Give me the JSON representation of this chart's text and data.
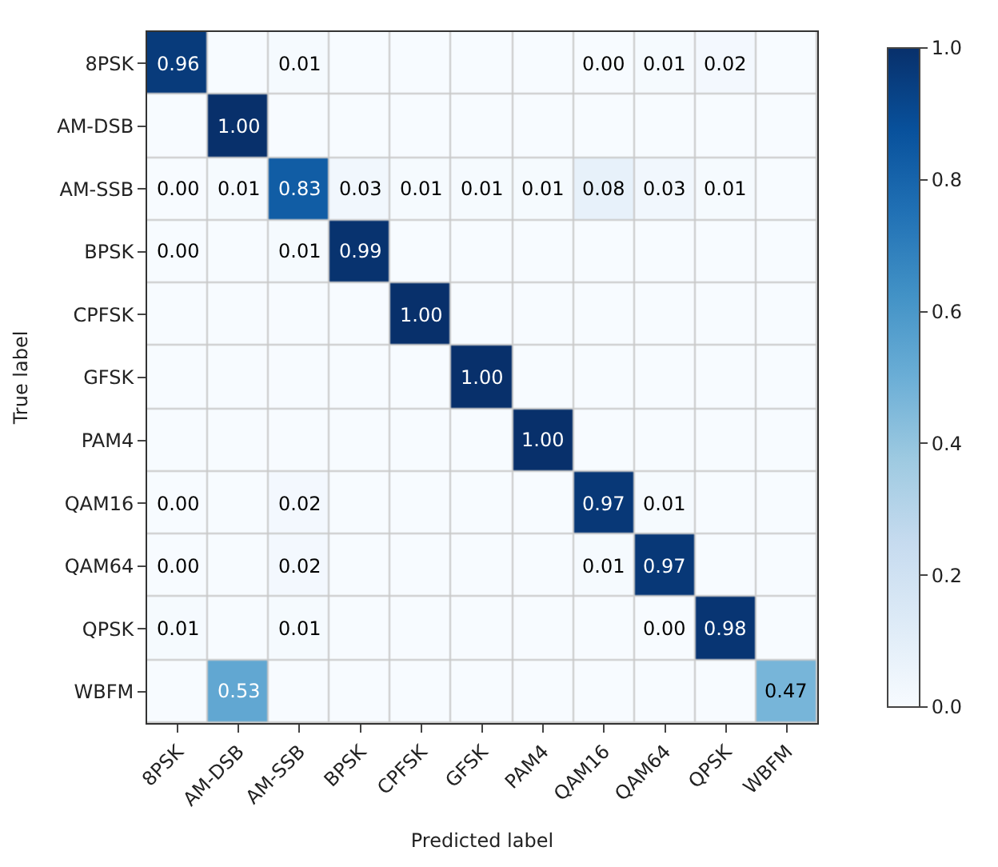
{
  "chart_data": {
    "type": "heatmap",
    "xlabel": "Predicted label",
    "ylabel": "True label",
    "categories": [
      "8PSK",
      "AM-DSB",
      "AM-SSB",
      "BPSK",
      "CPFSK",
      "GFSK",
      "PAM4",
      "QAM16",
      "QAM64",
      "QPSK",
      "WBFM"
    ],
    "y_categories": [
      "8PSK",
      "AM-DSB",
      "AM-SSB",
      "BPSK",
      "CPFSK",
      "GFSK",
      "PAM4",
      "QAM16",
      "QAM64",
      "QPSK",
      "WBFM"
    ],
    "cells": [
      [
        0.96,
        0,
        0.01,
        0,
        0,
        0,
        0,
        0.0,
        0.01,
        0.02,
        0
      ],
      [
        0,
        1.0,
        0,
        0,
        0,
        0,
        0,
        0,
        0,
        0,
        0
      ],
      [
        0.0,
        0.01,
        0.83,
        0.03,
        0.01,
        0.01,
        0.01,
        0.08,
        0.03,
        0.01,
        0
      ],
      [
        0.0,
        0,
        0.01,
        0.99,
        0,
        0,
        0,
        0,
        0,
        0,
        0
      ],
      [
        0,
        0,
        0,
        0,
        1.0,
        0,
        0,
        0,
        0,
        0,
        0
      ],
      [
        0,
        0,
        0,
        0,
        0,
        1.0,
        0,
        0,
        0,
        0,
        0
      ],
      [
        0,
        0,
        0,
        0,
        0,
        0,
        1.0,
        0,
        0,
        0,
        0
      ],
      [
        0.0,
        0,
        0.02,
        0,
        0,
        0,
        0,
        0.97,
        0.01,
        0,
        0
      ],
      [
        0.0,
        0,
        0.02,
        0,
        0,
        0,
        0,
        0.01,
        0.97,
        0,
        0
      ],
      [
        0.01,
        0,
        0.01,
        0,
        0,
        0,
        0,
        0,
        0.0,
        0.98,
        0
      ],
      [
        0,
        0.53,
        0,
        0,
        0,
        0,
        0,
        0,
        0,
        0,
        0.47
      ]
    ],
    "cell_labels": [
      [
        "0.96",
        null,
        "0.01",
        null,
        null,
        null,
        null,
        "0.00",
        "0.01",
        "0.02",
        null
      ],
      [
        null,
        "1.00",
        null,
        null,
        null,
        null,
        null,
        null,
        null,
        null,
        null
      ],
      [
        "0.00",
        "0.01",
        "0.83",
        "0.03",
        "0.01",
        "0.01",
        "0.01",
        "0.08",
        "0.03",
        "0.01",
        null
      ],
      [
        "0.00",
        null,
        "0.01",
        "0.99",
        null,
        null,
        null,
        null,
        null,
        null,
        null
      ],
      [
        null,
        null,
        null,
        null,
        "1.00",
        null,
        null,
        null,
        null,
        null,
        null
      ],
      [
        null,
        null,
        null,
        null,
        null,
        "1.00",
        null,
        null,
        null,
        null,
        null
      ],
      [
        null,
        null,
        null,
        null,
        null,
        null,
        "1.00",
        null,
        null,
        null,
        null
      ],
      [
        "0.00",
        null,
        "0.02",
        null,
        null,
        null,
        null,
        "0.97",
        "0.01",
        null,
        null
      ],
      [
        "0.00",
        null,
        "0.02",
        null,
        null,
        null,
        null,
        "0.01",
        "0.97",
        null,
        null
      ],
      [
        "0.01",
        null,
        "0.01",
        null,
        null,
        null,
        null,
        null,
        "0.00",
        "0.98",
        null
      ],
      [
        null,
        "0.53",
        null,
        null,
        null,
        null,
        null,
        null,
        null,
        null,
        "0.47"
      ]
    ],
    "clim": [
      0.0,
      1.0
    ],
    "cticks": [
      {
        "value": 0.0,
        "label": "0.0"
      },
      {
        "value": 0.2,
        "label": "0.2"
      },
      {
        "value": 0.4,
        "label": "0.4"
      },
      {
        "value": 0.6,
        "label": "0.6"
      },
      {
        "value": 0.8,
        "label": "0.8"
      },
      {
        "value": 1.0,
        "label": "1.0"
      }
    ]
  }
}
